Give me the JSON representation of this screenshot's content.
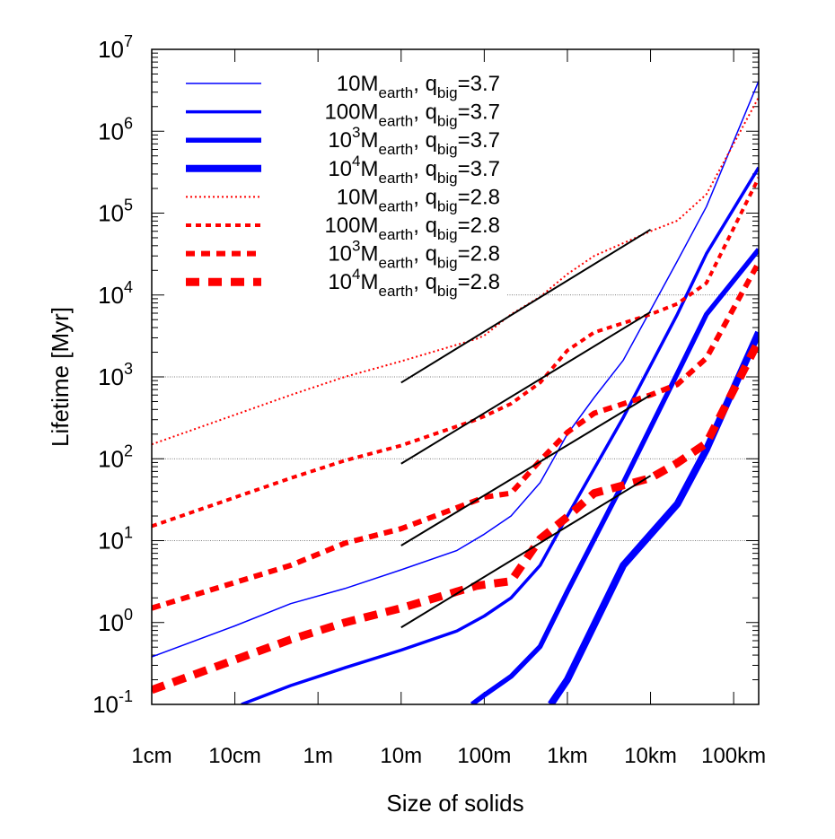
{
  "chart_data": {
    "type": "line",
    "xlabel": "Size of solids",
    "ylabel": "Lifetime [Myr]",
    "x_scale": "log",
    "y_scale": "log",
    "xlim_m": [
      0.01,
      200000
    ],
    "ylim": [
      0.1,
      10000000
    ],
    "x_ticks": [
      {
        "value": 0.01,
        "label": "1cm"
      },
      {
        "value": 0.1,
        "label": "10cm"
      },
      {
        "value": 1,
        "label": "1m"
      },
      {
        "value": 10,
        "label": "10m"
      },
      {
        "value": 100,
        "label": "100m"
      },
      {
        "value": 1000,
        "label": "1km"
      },
      {
        "value": 10000,
        "label": "10km"
      },
      {
        "value": 100000,
        "label": "100km"
      }
    ],
    "y_ticks": [
      {
        "value": 0.1,
        "base": "10",
        "exp": "-1"
      },
      {
        "value": 1,
        "base": "10",
        "exp": "0"
      },
      {
        "value": 10,
        "base": "10",
        "exp": "1"
      },
      {
        "value": 100,
        "base": "10",
        "exp": "2"
      },
      {
        "value": 1000,
        "base": "10",
        "exp": "3"
      },
      {
        "value": 10000,
        "base": "10",
        "exp": "4"
      },
      {
        "value": 100000,
        "base": "10",
        "exp": "5"
      },
      {
        "value": 1000000,
        "base": "10",
        "exp": "6"
      },
      {
        "value": 10000000,
        "base": "10",
        "exp": "7"
      }
    ],
    "grid_y": [
      10,
      100,
      1000,
      10000
    ],
    "legend_placement": "top-left",
    "series": [
      {
        "name_main": "10M",
        "name_sub": "earth",
        "name_q": ", q",
        "name_qsub": "big",
        "name_val": "=3.7",
        "color": "#0000ff",
        "style": "solid",
        "weight": 1,
        "x": [
          0.01,
          0.1,
          0.47,
          2.1,
          10,
          47,
          100,
          210,
          470,
          1000,
          2100,
          4700,
          21000,
          47000,
          200000
        ],
        "y": [
          0.38,
          0.91,
          1.7,
          2.6,
          4.4,
          7.6,
          12,
          20,
          51,
          200,
          560,
          1600,
          26000,
          120000,
          4100000
        ]
      },
      {
        "name_main": "100M",
        "name_sub": "earth",
        "name_q": ", q",
        "name_qsub": "big",
        "name_val": "=3.7",
        "color": "#0000ff",
        "style": "solid",
        "weight": 2,
        "x": [
          0.12,
          0.47,
          2.1,
          10,
          47,
          100,
          210,
          470,
          1000,
          4700,
          21000,
          47000,
          200000
        ],
        "y": [
          0.1,
          0.17,
          0.28,
          0.46,
          0.79,
          1.2,
          2.0,
          5.0,
          20,
          320,
          5800,
          32000,
          360000
        ]
      },
      {
        "name_main": "10",
        "name_sup": "3",
        "name_main2": "M",
        "name_sub": "earth",
        "name_q": ", q",
        "name_qsub": "big",
        "name_val": "=3.7",
        "color": "#0000ff",
        "style": "solid",
        "weight": 3,
        "x": [
          71,
          100,
          210,
          470,
          1000,
          4700,
          21000,
          47000,
          200000
        ],
        "y": [
          0.1,
          0.13,
          0.22,
          0.51,
          2.4,
          51,
          1100,
          5800,
          36000
        ]
      },
      {
        "name_main": "10",
        "name_sup": "4",
        "name_main2": "M",
        "name_sub": "earth",
        "name_q": ", q",
        "name_qsub": "big",
        "name_val": "=3.7",
        "color": "#0000ff",
        "style": "solid",
        "weight": 4,
        "x": [
          630,
          1000,
          4700,
          21000,
          47000,
          200000
        ],
        "y": [
          0.1,
          0.2,
          5.0,
          28,
          130,
          3500
        ]
      },
      {
        "name_main": "10M",
        "name_sub": "earth",
        "name_q": ", q",
        "name_qsub": "big",
        "name_val": "=2.8",
        "color": "#ff0000",
        "style": "dashed",
        "weight": 1,
        "x": [
          0.01,
          0.47,
          2.1,
          10,
          80,
          100,
          210,
          470,
          1000,
          2100,
          10000,
          21000,
          47000,
          200000
        ],
        "y": [
          150,
          600,
          1000,
          1550,
          2900,
          3200,
          5800,
          9500,
          18000,
          30000,
          60000,
          81000,
          170000,
          2600000
        ]
      },
      {
        "name_main": "100M",
        "name_sub": "earth",
        "name_q": ", q",
        "name_qsub": "big",
        "name_val": "=2.8",
        "color": "#ff0000",
        "style": "dashed",
        "weight": 2,
        "x": [
          0.01,
          0.47,
          2.1,
          10,
          80,
          100,
          210,
          470,
          1000,
          2100,
          10000,
          21000,
          47000,
          200000
        ],
        "y": [
          15,
          58,
          95,
          145,
          300,
          330,
          470,
          850,
          2100,
          3500,
          5800,
          7800,
          14000,
          270000
        ]
      },
      {
        "name_main": "10",
        "name_sup": "3",
        "name_main2": "M",
        "name_sub": "earth",
        "name_q": ", q",
        "name_qsub": "big",
        "name_val": "=2.8",
        "color": "#ff0000",
        "style": "dashed",
        "weight": 3,
        "x": [
          0.01,
          0.47,
          2.1,
          10,
          80,
          100,
          210,
          470,
          1000,
          2100,
          10000,
          21000,
          47000,
          200000
        ],
        "y": [
          1.5,
          5.0,
          9.3,
          14,
          31,
          34,
          38,
          95,
          210,
          360,
          600,
          810,
          1700,
          25000
        ]
      },
      {
        "name_main": "10",
        "name_sup": "4",
        "name_main2": "M",
        "name_sub": "earth",
        "name_q": ", q",
        "name_qsub": "big",
        "name_val": "=2.8",
        "color": "#ff0000",
        "style": "dashed",
        "weight": 4,
        "x": [
          0.01,
          0.47,
          2.1,
          10,
          80,
          100,
          210,
          470,
          1000,
          2100,
          10000,
          21000,
          47000,
          200000
        ],
        "y": [
          0.15,
          0.62,
          1.0,
          1.5,
          2.8,
          2.9,
          3.2,
          10.5,
          19.5,
          38,
          58,
          89,
          155,
          2750
        ]
      }
    ],
    "fit_lines": [
      {
        "x": [
          10,
          10000
        ],
        "y": [
          850,
          63000
        ],
        "color": "#000000"
      },
      {
        "x": [
          10,
          10000
        ],
        "y": [
          87,
          6200
        ],
        "color": "#000000"
      },
      {
        "x": [
          10,
          10000
        ],
        "y": [
          8.7,
          600
        ],
        "color": "#000000"
      },
      {
        "x": [
          10,
          10000
        ],
        "y": [
          0.87,
          62
        ],
        "color": "#000000"
      }
    ]
  }
}
